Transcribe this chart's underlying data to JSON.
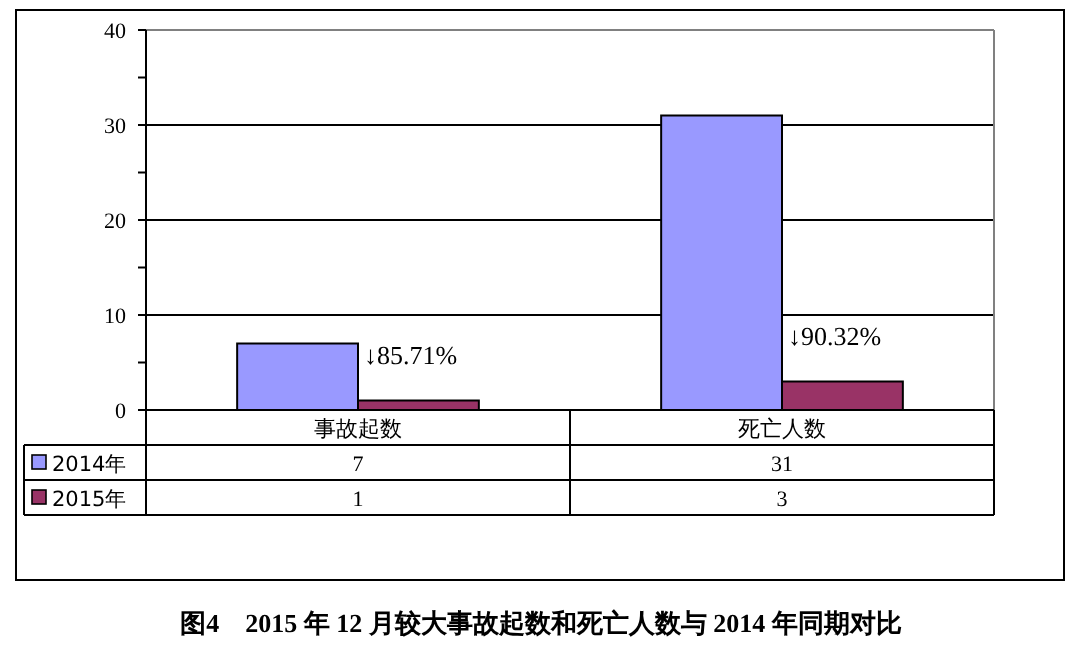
{
  "chart_data": {
    "type": "bar",
    "title": "图4　2015 年 12 月较大事故起数和死亡人数与 2014 年同期对比",
    "categories": [
      "事故起数",
      "死亡人数"
    ],
    "series": [
      {
        "name": "2014年",
        "color": "#9999ff",
        "values": [
          7,
          31
        ]
      },
      {
        "name": "2015年",
        "color": "#993366",
        "values": [
          1,
          3
        ]
      }
    ],
    "ylim": [
      0,
      40
    ],
    "yticks": [
      0,
      {
        "value": 5,
        "label": null
      },
      10,
      {
        "value": 15,
        "label": null
      },
      20,
      {
        "value": 25,
        "label": null
      },
      30,
      {
        "value": 35,
        "label": null
      },
      40
    ],
    "grid": "y",
    "legend": "bottom",
    "data_labels": true,
    "annotations": [
      {
        "text": "↓85.71%",
        "x": "事故起数",
        "y": 4
      },
      {
        "text": "↓90.32%",
        "x": "死亡人数",
        "y": 6
      }
    ]
  }
}
